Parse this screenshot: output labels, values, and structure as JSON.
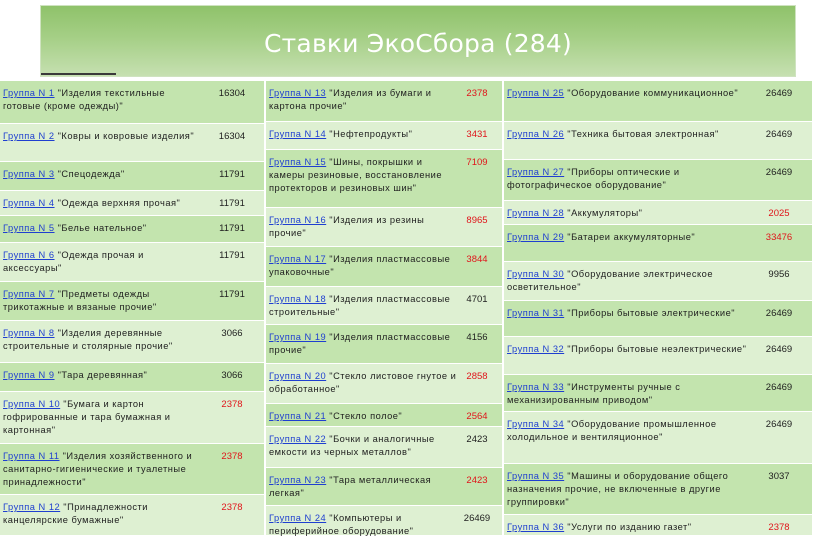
{
  "title": "Ставки ЭкоСбора (284)",
  "columns": [
    [
      {
        "link": "Группа N 1",
        "text": " \"Изделия текстильные готовые (кроме одежды)\"",
        "value": "16304",
        "red": false
      },
      {
        "link": "Группа N 2",
        "text": " \"Ковры и ковровые изделия\"",
        "value": "16304",
        "red": false
      },
      {
        "link": "Группа N 3",
        "text": " \"Спецодежда\"",
        "value": "11791",
        "red": false
      },
      {
        "link": "Группа N 4",
        "text": " \"Одежда верхняя прочая\"",
        "value": "11791",
        "red": false
      },
      {
        "link": "Группа N 5",
        "text": " \"Белье нательное\"",
        "value": "11791",
        "red": false
      },
      {
        "link": "Группа N 6",
        "text": " \"Одежда прочая и аксессуары\"",
        "value": "11791",
        "red": false
      },
      {
        "link": "Группа N 7",
        "text": " \"Предметы одежды трикотажные и вязаные прочие\"",
        "value": "11791",
        "red": false
      },
      {
        "link": "Группа N 8",
        "text": " \"Изделия деревянные строительные и столярные прочие\"",
        "value": "3066",
        "red": false
      },
      {
        "link": "Группа N 9",
        "text": " \"Тара деревянная\"",
        "value": "3066",
        "red": false
      },
      {
        "link": "Группа N 10",
        "text": " \"Бумага и картон гофрированные и тара бумажная и картонная\"",
        "value": "2378",
        "red": true
      },
      {
        "link": "Группа N 11",
        "text": " \"Изделия хозяйственного и санитарно-гигиенические и туалетные принадлежности\"",
        "value": "2378",
        "red": true
      },
      {
        "link": "Группа N 12",
        "text": " \"Принадлежности канцелярские бумажные\"",
        "value": "2378",
        "red": true
      }
    ],
    [
      {
        "link": "Группа N 13",
        "text": " \"Изделия из бумаги и картона прочие\"",
        "value": "2378",
        "red": true
      },
      {
        "link": "Группа N 14",
        "text": " \"Нефтепродукты\"",
        "value": "3431",
        "red": true
      },
      {
        "link": "Группа N 15",
        "text": " \"Шины, покрышки и камеры резиновые, восстановление протекторов и резиновых шин\"",
        "value": "7109",
        "red": true
      },
      {
        "link": "Группа N 16",
        "text": " \"Изделия из резины прочие\"",
        "value": "8965",
        "red": true
      },
      {
        "link": "Группа N 17",
        "text": " \"Изделия пластмассовые упаковочные\"",
        "value": "3844",
        "red": true
      },
      {
        "link": "Группа N 18",
        "text": " \"Изделия пластмассовые строительные\"",
        "value": "4701",
        "red": false
      },
      {
        "link": "Группа N 19",
        "text": " \"Изделия пластмассовые прочие\"",
        "value": "4156",
        "red": false
      },
      {
        "link": "Группа N 20",
        "text": " \"Стекло листовое гнутое и обработанное\"",
        "value": "2858",
        "red": true
      },
      {
        "link": "Группа N 21",
        "text": " \"Стекло полое\"",
        "value": "2564",
        "red": true
      },
      {
        "link": "Группа N 22",
        "text": " \"Бочки и аналогичные емкости из черных металлов\"",
        "value": "2423",
        "red": false
      },
      {
        "link": "Группа N 23",
        "text": " \"Тара металлическая легкая\"",
        "value": "2423",
        "red": true
      },
      {
        "link": "Группа N 24",
        "text": " \"Компьютеры и периферийное оборудование\"",
        "value": "26469",
        "red": false
      }
    ],
    [
      {
        "link": "Группа N 25",
        "text": " \"Оборудование коммуникационное\"",
        "value": "26469",
        "red": false
      },
      {
        "link": "Группа N 26",
        "text": " \"Техника бытовая электронная\"",
        "value": "26469",
        "red": false
      },
      {
        "link": "Группа N 27",
        "text": " \"Приборы оптические и фотографическое оборудование\"",
        "value": "26469",
        "red": false
      },
      {
        "link": "Группа N 28",
        "text": " \"Аккумуляторы\"",
        "value": "2025",
        "red": true
      },
      {
        "link": "Группа N 29",
        "text": " \"Батареи аккумуляторные\"",
        "value": "33476",
        "red": true
      },
      {
        "link": "Группа N 30",
        "text": " \"Оборудование электрическое осветительное\"",
        "value": "9956",
        "red": false
      },
      {
        "link": "Группа N 31",
        "text": " \"Приборы бытовые электрические\"",
        "value": "26469",
        "red": false
      },
      {
        "link": "Группа N 32",
        "text": " \"Приборы бытовые неэлектрические\"",
        "value": "26469",
        "red": false
      },
      {
        "link": "Группа N 33",
        "text": " \"Инструменты ручные с механизированным приводом\"",
        "value": "26469",
        "red": false
      },
      {
        "link": "Группа N 34",
        "text": " \"Оборудование промышленное холодильное и вентиляционное\"",
        "value": "26469",
        "red": false
      },
      {
        "link": "Группа N 35",
        "text": " \"Машины и оборудование общего назначения прочие, не включенные в другие группировки\"",
        "value": "3037",
        "red": false
      },
      {
        "link": "Группа N 36",
        "text": " \"Услуги по изданию газет\"",
        "value": "2378",
        "red": true
      }
    ]
  ]
}
